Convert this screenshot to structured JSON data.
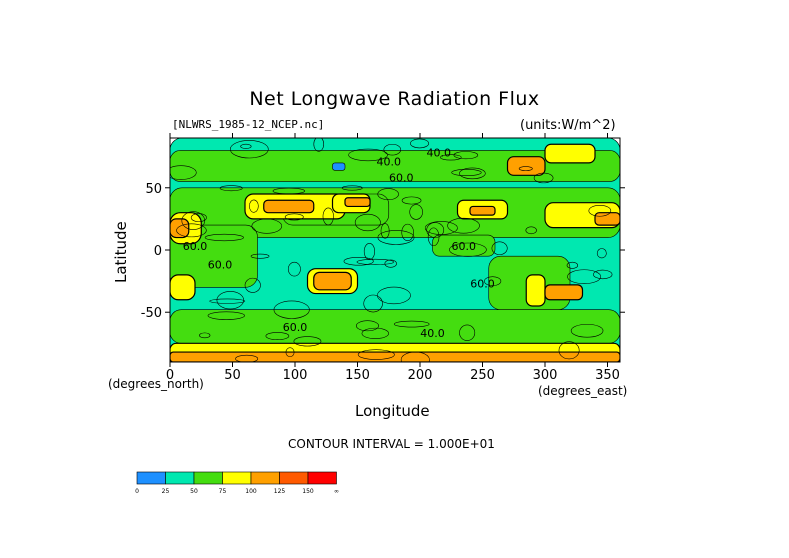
{
  "chart_data": {
    "type": "heatmap",
    "title": "Net Longwave Radiation Flux",
    "source_label": "[NLWRS_1985-12_NCEP.nc]",
    "units_label": "(units:W/m^2)",
    "xlabel": "Longitude",
    "ylabel": "Latitude",
    "x_units_label": "(degrees_east)",
    "y_units_label": "(degrees_north)",
    "xlim": [
      0,
      360
    ],
    "ylim": [
      -90,
      90
    ],
    "x_ticks": [
      0,
      50,
      100,
      150,
      200,
      250,
      300,
      350
    ],
    "y_ticks": [
      -50,
      0,
      50
    ],
    "contour_interval_text": "CONTOUR INTERVAL = 1.000E+01",
    "contour_labels": [
      {
        "text": "60.0",
        "x": 235,
        "y": 0
      },
      {
        "text": "60.0",
        "x": 40,
        "y": -15
      },
      {
        "text": "60.0",
        "x": 20,
        "y": 0
      },
      {
        "text": "60.0",
        "x": 250,
        "y": -30
      },
      {
        "text": "40.0",
        "x": 215,
        "y": 75
      },
      {
        "text": "40.0",
        "x": 175,
        "y": 68
      },
      {
        "text": "60.0",
        "x": 185,
        "y": 55
      },
      {
        "text": "60.0",
        "x": 100,
        "y": -65
      },
      {
        "text": "40.0",
        "x": 210,
        "y": -70
      }
    ],
    "colorbar": {
      "ticks": [
        "0",
        "25",
        "50",
        "75",
        "100",
        "125",
        "150",
        "∞"
      ],
      "colors": [
        "#1e90ff",
        "#00e8b0",
        "#44dd10",
        "#ffff00",
        "#ffa000",
        "#ff5a00",
        "#ff0000"
      ]
    },
    "regions": [
      {
        "level": 1,
        "x": [
          0,
          360
        ],
        "y": [
          -90,
          90
        ]
      },
      {
        "level": 2,
        "x": [
          0,
          360
        ],
        "y": [
          10,
          50
        ]
      },
      {
        "level": 2,
        "x": [
          0,
          70
        ],
        "y": [
          -30,
          20
        ]
      },
      {
        "level": 2,
        "x": [
          90,
          175
        ],
        "y": [
          20,
          45
        ]
      },
      {
        "level": 2,
        "x": [
          0,
          360
        ],
        "y": [
          -75,
          -48
        ]
      },
      {
        "level": 2,
        "x": [
          255,
          320
        ],
        "y": [
          -48,
          -5
        ]
      },
      {
        "level": 2,
        "x": [
          210,
          260
        ],
        "y": [
          -5,
          12
        ]
      },
      {
        "level": 2,
        "x": [
          0,
          360
        ],
        "y": [
          55,
          80
        ]
      },
      {
        "level": 3,
        "x": [
          0,
          25
        ],
        "y": [
          5,
          30
        ]
      },
      {
        "level": 3,
        "x": [
          60,
          140
        ],
        "y": [
          25,
          45
        ]
      },
      {
        "level": 3,
        "x": [
          130,
          160
        ],
        "y": [
          30,
          45
        ]
      },
      {
        "level": 3,
        "x": [
          0,
          360
        ],
        "y": [
          -90,
          -75
        ]
      },
      {
        "level": 3,
        "x": [
          300,
          360
        ],
        "y": [
          18,
          38
        ]
      },
      {
        "level": 3,
        "x": [
          230,
          270
        ],
        "y": [
          25,
          40
        ]
      },
      {
        "level": 3,
        "x": [
          0,
          20
        ],
        "y": [
          -40,
          -20
        ]
      },
      {
        "level": 3,
        "x": [
          110,
          150
        ],
        "y": [
          -35,
          -15
        ]
      },
      {
        "level": 3,
        "x": [
          285,
          300
        ],
        "y": [
          -45,
          -20
        ]
      },
      {
        "level": 3,
        "x": [
          300,
          340
        ],
        "y": [
          70,
          85
        ]
      },
      {
        "level": 4,
        "x": [
          0,
          15
        ],
        "y": [
          10,
          25
        ]
      },
      {
        "level": 4,
        "x": [
          115,
          145
        ],
        "y": [
          -32,
          -18
        ]
      },
      {
        "level": 4,
        "x": [
          75,
          115
        ],
        "y": [
          30,
          40
        ]
      },
      {
        "level": 4,
        "x": [
          0,
          360
        ],
        "y": [
          -90,
          -82
        ]
      },
      {
        "level": 4,
        "x": [
          300,
          330
        ],
        "y": [
          -40,
          -28
        ]
      },
      {
        "level": 4,
        "x": [
          240,
          260
        ],
        "y": [
          28,
          35
        ]
      },
      {
        "level": 4,
        "x": [
          340,
          360
        ],
        "y": [
          20,
          30
        ]
      },
      {
        "level": 4,
        "x": [
          140,
          160
        ],
        "y": [
          35,
          42
        ]
      },
      {
        "level": 4,
        "x": [
          270,
          300
        ],
        "y": [
          60,
          75
        ]
      },
      {
        "level": 0,
        "x": [
          130,
          140
        ],
        "y": [
          64,
          70
        ]
      }
    ]
  }
}
